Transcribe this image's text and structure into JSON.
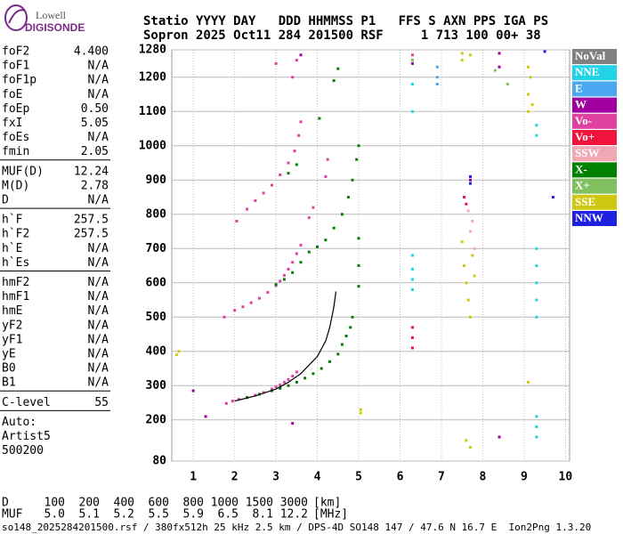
{
  "logo": {
    "top": "Lowell",
    "bottom": "DIGISONDE"
  },
  "header": {
    "rows": [
      "Statio YYYY DAY   DDD HHMMSS P1   FFS S AXN PPS IGA PS",
      "Sopron 2025 Oct11 284 201500 RSF     1 713 100 00+ 38"
    ]
  },
  "params": {
    "groups": [
      [
        [
          "foF2",
          "4.400"
        ],
        [
          "foF1",
          "N/A"
        ],
        [
          "foF1p",
          "N/A"
        ],
        [
          "foE",
          "N/A"
        ],
        [
          "foEp",
          "0.50"
        ],
        [
          "fxI",
          "5.05"
        ],
        [
          "foEs",
          "N/A"
        ],
        [
          "fmin",
          "2.05"
        ]
      ],
      [
        [
          "MUF(D)",
          "12.24"
        ],
        [
          "M(D)",
          "2.78"
        ],
        [
          "D",
          "N/A"
        ]
      ],
      [
        [
          "h`F",
          "257.5"
        ],
        [
          "h`F2",
          "257.5"
        ],
        [
          "h`E",
          "N/A"
        ],
        [
          "h`Es",
          "N/A"
        ]
      ],
      [
        [
          "hmF2",
          "N/A"
        ],
        [
          "hmF1",
          "N/A"
        ],
        [
          "hmE",
          "N/A"
        ],
        [
          "yF2",
          "N/A"
        ],
        [
          "yF1",
          "N/A"
        ],
        [
          "yE",
          "N/A"
        ],
        [
          "B0",
          "N/A"
        ],
        [
          "B1",
          "N/A"
        ]
      ],
      [
        [
          "C-level",
          "55"
        ]
      ],
      [
        [
          "Auto:"
        ],
        [
          "Artist5"
        ],
        [
          "500200"
        ]
      ]
    ]
  },
  "muf_table": {
    "rows": [
      [
        "D",
        "100",
        "200",
        "400",
        "600",
        "800",
        "1000",
        "1500",
        "3000",
        "[km]"
      ],
      [
        "MUF",
        "5.0",
        "5.1",
        "5.2",
        "5.5",
        "5.9",
        "6.5",
        "8.1",
        "12.2",
        "[MHz]"
      ]
    ]
  },
  "footer": "so148_2025284201500.rsf / 380fx512h 25 kHz 2.5 km / DPS-4D SO148 147 / 47.6 N 16.7 E  Ion2Png 1.3.20",
  "chart_data": {
    "type": "scatter",
    "xlim": [
      0.48,
      10.1
    ],
    "ylim": [
      80,
      1280
    ],
    "xticks": [
      1,
      2,
      3,
      4,
      5,
      6,
      7,
      8,
      9,
      10
    ],
    "yticks": [
      80,
      200,
      300,
      400,
      500,
      600,
      700,
      800,
      900,
      1000,
      1100,
      1200,
      1280
    ],
    "grid": true,
    "legend": "right",
    "profile": {
      "color": "#000000",
      "x": [
        2.0,
        2.5,
        3.0,
        3.3,
        3.6,
        3.8,
        4.0,
        4.2,
        4.3,
        4.4,
        4.45
      ],
      "values": [
        255,
        270,
        290,
        310,
        335,
        360,
        385,
        430,
        470,
        530,
        575
      ]
    },
    "series": [
      {
        "name": "NoVal",
        "color": "#808080",
        "x": [],
        "values": []
      },
      {
        "name": "NNE",
        "color": "#22d3e6",
        "x": [
          6.3,
          6.3,
          6.3,
          6.3,
          9.3,
          9.3,
          9.3,
          9.3,
          9.3,
          9.3,
          9.3,
          9.3,
          6.3,
          9.3,
          9.3,
          6.3
        ],
        "values": [
          680,
          640,
          610,
          580,
          700,
          650,
          600,
          550,
          500,
          210,
          180,
          150,
          1100,
          1060,
          1030,
          1180
        ]
      },
      {
        "name": "E",
        "color": "#4aa8f0",
        "x": [
          6.9,
          6.9,
          6.9
        ],
        "values": [
          1230,
          1200,
          1180
        ]
      },
      {
        "name": "W",
        "color": "#a000a0",
        "x": [
          6.3,
          3.4,
          3.6,
          7.7,
          8.4,
          8.4,
          1.3,
          1.0,
          8.4
        ],
        "values": [
          1240,
          190,
          1265,
          900,
          1270,
          1230,
          210,
          285,
          150
        ]
      },
      {
        "name": "Vo-",
        "color": "#e040a0",
        "x": [
          1.8,
          1.95,
          2.1,
          2.3,
          2.5,
          2.7,
          2.9,
          3.0,
          3.1,
          3.2,
          3.3,
          3.4,
          3.5,
          1.75,
          2.0,
          2.2,
          2.4,
          2.6,
          2.8,
          3.0,
          3.1,
          3.2,
          3.3,
          3.4,
          3.5,
          3.6,
          2.05,
          2.3,
          2.5,
          2.7,
          2.9,
          3.1,
          3.3,
          3.45,
          3.55,
          3.6,
          3.8,
          3.9,
          4.2,
          4.25,
          3.4,
          3.5,
          6.3,
          3.0
        ],
        "values": [
          248,
          255,
          260,
          266,
          272,
          280,
          290,
          296,
          302,
          310,
          318,
          328,
          340,
          500,
          520,
          530,
          542,
          555,
          572,
          592,
          605,
          622,
          640,
          660,
          685,
          710,
          780,
          815,
          840,
          862,
          885,
          915,
          950,
          985,
          1030,
          1070,
          790,
          820,
          910,
          960,
          1200,
          1250,
          1265,
          1240
        ]
      },
      {
        "name": "Vo+",
        "color": "#f0143c",
        "x": [
          6.3,
          6.3,
          6.3,
          7.55,
          7.6
        ],
        "values": [
          410,
          440,
          470,
          850,
          830
        ]
      },
      {
        "name": "SSW",
        "color": "#f0a8b4",
        "x": [
          7.75,
          7.7,
          7.65,
          7.8
        ],
        "values": [
          780,
          750,
          810,
          700
        ]
      },
      {
        "name": "X-",
        "color": "#008000",
        "x": [
          2.3,
          2.6,
          2.9,
          3.1,
          3.3,
          3.5,
          3.7,
          3.9,
          4.1,
          4.3,
          4.5,
          4.6,
          4.7,
          4.8,
          4.85,
          3.0,
          3.2,
          3.4,
          3.6,
          3.8,
          4.0,
          4.2,
          4.4,
          4.6,
          4.75,
          4.85,
          4.95,
          5.0,
          5.0,
          5.0,
          5.0,
          3.5,
          3.3,
          4.05,
          4.4,
          4.5
        ],
        "values": [
          265,
          275,
          285,
          292,
          300,
          310,
          322,
          335,
          350,
          370,
          392,
          420,
          445,
          470,
          500,
          595,
          610,
          630,
          660,
          690,
          705,
          725,
          760,
          800,
          850,
          900,
          960,
          1000,
          730,
          650,
          590,
          945,
          920,
          1080,
          1190,
          1225
        ]
      },
      {
        "name": "X+",
        "color": "#80c060",
        "x": [
          6.3,
          8.6,
          8.3
        ],
        "values": [
          1250,
          1180,
          1220
        ]
      },
      {
        "name": "SSE",
        "color": "#d0c810",
        "x": [
          7.5,
          7.55,
          7.6,
          7.65,
          7.7,
          7.75,
          7.8,
          7.5,
          7.5,
          7.7,
          9.1,
          9.15,
          9.1,
          9.2,
          9.1,
          9.1,
          5.05,
          5.05,
          0.65,
          0.6,
          7.6,
          7.7
        ],
        "values": [
          720,
          650,
          600,
          550,
          500,
          680,
          620,
          1270,
          1250,
          1265,
          1230,
          1200,
          1150,
          1120,
          1100,
          310,
          220,
          230,
          400,
          390,
          140,
          120
        ]
      },
      {
        "name": "NNW",
        "color": "#2020e0",
        "x": [
          7.7,
          7.7,
          9.7,
          9.5
        ],
        "values": [
          910,
          890,
          850,
          1275
        ]
      }
    ]
  }
}
